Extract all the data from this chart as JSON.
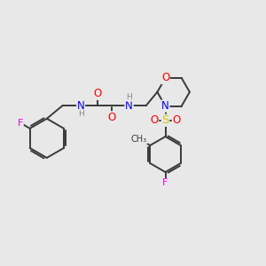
{
  "bg_color": "#e8e8e8",
  "bond_color": "#3a3a3a",
  "bond_width": 1.4,
  "atom_colors": {
    "F": "#ee00ee",
    "O": "#ff0000",
    "N": "#0000ff",
    "S": "#cccc00",
    "C": "#3a3a3a",
    "H": "#888888"
  },
  "font_size": 7.5,
  "figsize": [
    3.0,
    3.0
  ],
  "dpi": 100
}
